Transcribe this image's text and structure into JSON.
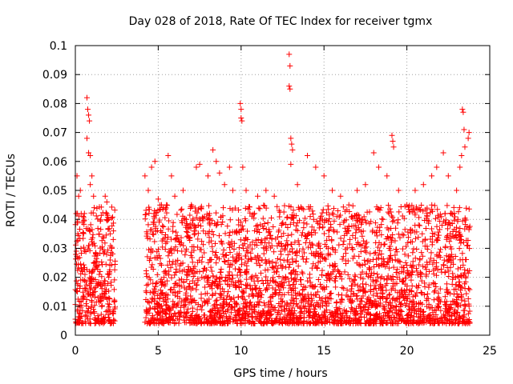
{
  "chart_data": {
    "type": "scatter",
    "title": "Day 028 of 2018, Rate Of TEC Index for receiver tgmx",
    "xlabel": "GPS time / hours",
    "ylabel": "ROTI / TECUs",
    "xlim": [
      0,
      25
    ],
    "ylim": [
      0,
      0.1
    ],
    "xticks": [
      0,
      5,
      10,
      15,
      20,
      25
    ],
    "xtick_labels": [
      "0",
      "5",
      "10",
      "15",
      "20",
      "25"
    ],
    "yticks": [
      0,
      0.01,
      0.02,
      0.03,
      0.04,
      0.05,
      0.06,
      0.07,
      0.08,
      0.09,
      0.1
    ],
    "ytick_labels": [
      "0",
      "0.01",
      "0.02",
      "0.03",
      "0.04",
      "0.05",
      "0.06",
      "0.07",
      "0.08",
      "0.09",
      "0.1"
    ],
    "grid": true,
    "marker": "+",
    "color": "#ff0000",
    "series": [
      {
        "name": "ROTI",
        "segments": [
          [
            0.0,
            2.4
          ],
          [
            4.2,
            23.8
          ]
        ],
        "points": [
          [
            0.05,
            0.042
          ],
          [
            0.1,
            0.055
          ],
          [
            0.15,
            0.035
          ],
          [
            0.2,
            0.048
          ],
          [
            0.3,
            0.05
          ],
          [
            0.7,
            0.082
          ],
          [
            0.75,
            0.078
          ],
          [
            0.8,
            0.076
          ],
          [
            0.85,
            0.074
          ],
          [
            0.7,
            0.068
          ],
          [
            0.8,
            0.063
          ],
          [
            0.9,
            0.062
          ],
          [
            1.0,
            0.055
          ],
          [
            0.9,
            0.052
          ],
          [
            1.1,
            0.048
          ],
          [
            1.8,
            0.048
          ],
          [
            1.9,
            0.046
          ],
          [
            2.0,
            0.04
          ],
          [
            2.1,
            0.035
          ],
          [
            2.2,
            0.03
          ],
          [
            4.2,
            0.055
          ],
          [
            4.4,
            0.05
          ],
          [
            4.6,
            0.058
          ],
          [
            4.8,
            0.06
          ],
          [
            5.0,
            0.047
          ],
          [
            5.2,
            0.045
          ],
          [
            5.5,
            0.045
          ],
          [
            5.6,
            0.062
          ],
          [
            5.8,
            0.055
          ],
          [
            6.0,
            0.048
          ],
          [
            6.5,
            0.05
          ],
          [
            7.0,
            0.045
          ],
          [
            7.3,
            0.058
          ],
          [
            7.5,
            0.059
          ],
          [
            8.0,
            0.055
          ],
          [
            8.3,
            0.064
          ],
          [
            8.5,
            0.06
          ],
          [
            8.7,
            0.056
          ],
          [
            9.0,
            0.052
          ],
          [
            9.3,
            0.058
          ],
          [
            9.5,
            0.05
          ],
          [
            9.95,
            0.08
          ],
          [
            10.0,
            0.078
          ],
          [
            10.0,
            0.075
          ],
          [
            10.05,
            0.074
          ],
          [
            10.1,
            0.058
          ],
          [
            10.3,
            0.05
          ],
          [
            11.0,
            0.048
          ],
          [
            11.5,
            0.05
          ],
          [
            12.0,
            0.048
          ],
          [
            12.9,
            0.097
          ],
          [
            12.95,
            0.093
          ],
          [
            12.9,
            0.086
          ],
          [
            12.95,
            0.085
          ],
          [
            13.0,
            0.068
          ],
          [
            13.05,
            0.066
          ],
          [
            13.1,
            0.064
          ],
          [
            13.0,
            0.059
          ],
          [
            13.4,
            0.052
          ],
          [
            14.0,
            0.062
          ],
          [
            14.5,
            0.058
          ],
          [
            15.0,
            0.055
          ],
          [
            15.5,
            0.05
          ],
          [
            16.0,
            0.048
          ],
          [
            16.5,
            0.045
          ],
          [
            17.0,
            0.05
          ],
          [
            17.5,
            0.052
          ],
          [
            18.0,
            0.063
          ],
          [
            18.3,
            0.058
          ],
          [
            18.8,
            0.055
          ],
          [
            19.1,
            0.069
          ],
          [
            19.15,
            0.067
          ],
          [
            19.2,
            0.065
          ],
          [
            19.5,
            0.05
          ],
          [
            20.0,
            0.045
          ],
          [
            20.5,
            0.05
          ],
          [
            21.0,
            0.052
          ],
          [
            21.5,
            0.055
          ],
          [
            21.8,
            0.058
          ],
          [
            22.2,
            0.063
          ],
          [
            22.5,
            0.055
          ],
          [
            23.0,
            0.05
          ],
          [
            23.2,
            0.058
          ],
          [
            23.3,
            0.062
          ],
          [
            23.35,
            0.078
          ],
          [
            23.4,
            0.077
          ],
          [
            23.45,
            0.071
          ],
          [
            23.5,
            0.065
          ],
          [
            23.7,
            0.068
          ],
          [
            23.75,
            0.07
          ]
        ],
        "baseline_range": [
          0.004,
          0.045
        ],
        "density_note": "dense cloud of several thousand points between 0.005 and 0.04 over both segments"
      }
    ]
  }
}
